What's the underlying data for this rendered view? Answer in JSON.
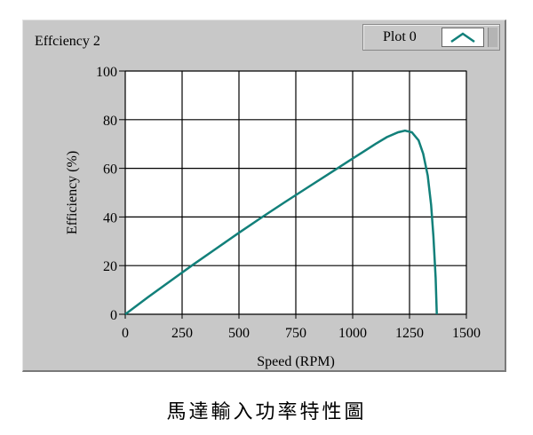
{
  "chart_data": {
    "type": "line",
    "title": "Effciency 2",
    "xlabel": "Speed (RPM)",
    "ylabel": "Efficiency (%)",
    "xlim": [
      0,
      1500
    ],
    "ylim": [
      0,
      100
    ],
    "xticks": [
      0,
      250,
      500,
      750,
      1000,
      1250,
      1500
    ],
    "yticks": [
      0,
      20,
      40,
      60,
      80,
      100
    ],
    "grid": true,
    "legend_position": "top-right",
    "series": [
      {
        "name": "Plot 0",
        "color": "#12807a",
        "x": [
          0,
          50,
          100,
          200,
          300,
          400,
          500,
          600,
          700,
          800,
          900,
          1000,
          1050,
          1100,
          1150,
          1200,
          1230,
          1260,
          1290,
          1310,
          1330,
          1345,
          1355,
          1365,
          1370
        ],
        "y": [
          0,
          3.5,
          7.0,
          13.8,
          20.5,
          27.0,
          33.5,
          39.8,
          46.0,
          52.0,
          58.0,
          64.0,
          67.0,
          70.0,
          72.8,
          74.8,
          75.5,
          74.8,
          71.5,
          66.0,
          57.0,
          45.0,
          32.0,
          15.0,
          0
        ]
      }
    ]
  },
  "caption": "馬達輸入功率特性圖"
}
